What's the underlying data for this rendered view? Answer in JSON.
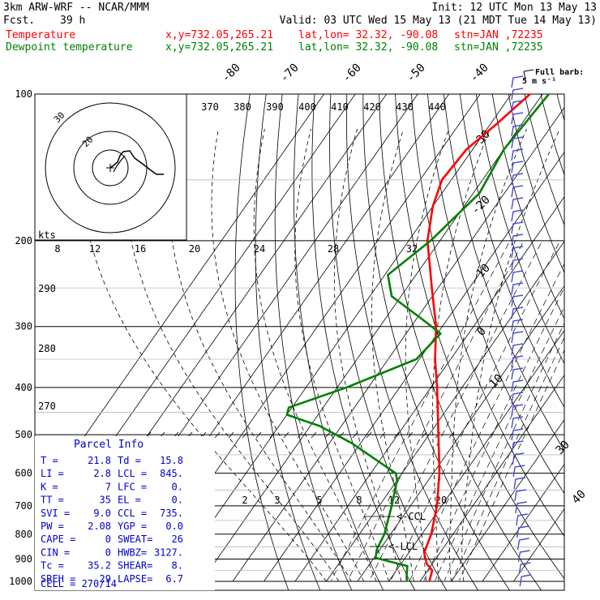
{
  "header": {
    "model": "3km ARW-WRF -- NCAR/MMM",
    "fcst_label": "Fcst.",
    "fcst_value": "39 h",
    "init": "Init: 12 UTC Mon 13 May 13",
    "valid": "Valid: 03 UTC Wed 15 May 13 (21 MDT Tue 14 May 13)"
  },
  "series_info": [
    {
      "name": "Temperature",
      "xy": "x,y=732.05,265.21",
      "latlon": "lat,lon= 32.32, -90.08",
      "stn": "stn=JAN ,72235",
      "color": "#ff0000"
    },
    {
      "name": "Dewpoint temperature",
      "xy": "x,y=732.05,265.21",
      "latlon": "lat,lon= 32.32, -90.08",
      "stn": "stn=JAN ,72235",
      "color": "#008000"
    }
  ],
  "barb_legend": "Full barb:",
  "barb_legend_unit": "5 m s⁻¹",
  "parcel_info": {
    "title": "Parcel Info",
    "rows": [
      [
        "T   =",
        "21.8",
        "Td  =",
        "15.8"
      ],
      [
        "LI  =",
        "2.8",
        "LCL =",
        "845."
      ],
      [
        "K   =",
        "7",
        "LFC =",
        "0."
      ],
      [
        "TT  =",
        "35",
        "EL  =",
        "0."
      ],
      [
        "SVI =",
        "9.0",
        "CCL =",
        "735."
      ],
      [
        "PW  =",
        "2.08",
        "YGP =",
        "0.0"
      ],
      [
        "CAPE =",
        "0",
        "SWEAT=",
        "26"
      ],
      [
        "CIN  =",
        "0",
        "HWBZ=",
        "3127."
      ],
      [
        "Tc  =",
        "35.2",
        "SHEAR=",
        "8."
      ],
      [
        "SREH =",
        "29",
        "LAPSE=",
        "6.7"
      ]
    ],
    "cell": "CELL = 270/14"
  },
  "annotations": {
    "ccl": "<-CCL",
    "lcl": "<-LCL"
  },
  "chart_data": {
    "type": "line",
    "title": "",
    "xlabel": "",
    "ylabel": "",
    "y_scale": "log-pressure",
    "ylim": [
      1000,
      100
    ],
    "pressure_levels": [
      100,
      200,
      300,
      400,
      500,
      600,
      700,
      800,
      900,
      1000
    ],
    "isotherm_labels": [
      -80,
      -70,
      -60,
      -50,
      -40,
      -30,
      -20,
      -10,
      0,
      10,
      30,
      40
    ],
    "theta_labels": [
      370,
      380,
      390,
      400,
      410,
      420,
      430,
      440
    ],
    "mixing_ratio_labels_upper": [
      8,
      12,
      16,
      20,
      24,
      28,
      32
    ],
    "mixing_ratio_labels_lower": [
      2,
      3,
      5,
      8,
      12,
      20
    ],
    "dry_adiabat_labels": [
      290,
      280,
      270
    ],
    "hodograph": {
      "unit_label": "kts",
      "rings": [
        10,
        20,
        30
      ],
      "ring_labels": [
        20,
        30
      ]
    },
    "series": [
      {
        "name": "Temperature",
        "color": "#ff0000",
        "points": [
          [
            1000,
            23.0
          ],
          [
            950,
            21.5
          ],
          [
            920,
            18.2
          ],
          [
            875,
            15.0
          ],
          [
            800,
            13.0
          ],
          [
            700,
            8.5
          ],
          [
            600,
            2.0
          ],
          [
            500,
            -7.0
          ],
          [
            400,
            -18.0
          ],
          [
            350,
            -25.0
          ],
          [
            300,
            -32.0
          ],
          [
            250,
            -42.0
          ],
          [
            200,
            -54.0
          ],
          [
            170,
            -60.0
          ],
          [
            150,
            -63.0
          ],
          [
            130,
            -62.0
          ],
          [
            115,
            -58.0
          ],
          [
            100,
            -54.0
          ]
        ]
      },
      {
        "name": "Dewpoint temperature",
        "color": "#008000",
        "points": [
          [
            1000,
            15.8
          ],
          [
            975,
            14.5
          ],
          [
            930,
            12.5
          ],
          [
            895,
            0.5
          ],
          [
            860,
            -1.0
          ],
          [
            800,
            -2.0
          ],
          [
            700,
            -6.0
          ],
          [
            620,
            -10.0
          ],
          [
            600,
            -12.0
          ],
          [
            520,
            -33.0
          ],
          [
            480,
            -47.0
          ],
          [
            455,
            -60.0
          ],
          [
            440,
            -61.0
          ],
          [
            400,
            -47.0
          ],
          [
            350,
            -31.0
          ],
          [
            310,
            -29.0
          ],
          [
            290,
            -38.0
          ],
          [
            260,
            -53.0
          ],
          [
            235,
            -59.0
          ],
          [
            200,
            -53.0
          ],
          [
            160,
            -48.0
          ],
          [
            130,
            -50.0
          ],
          [
            100,
            -48.0
          ]
        ]
      }
    ]
  }
}
